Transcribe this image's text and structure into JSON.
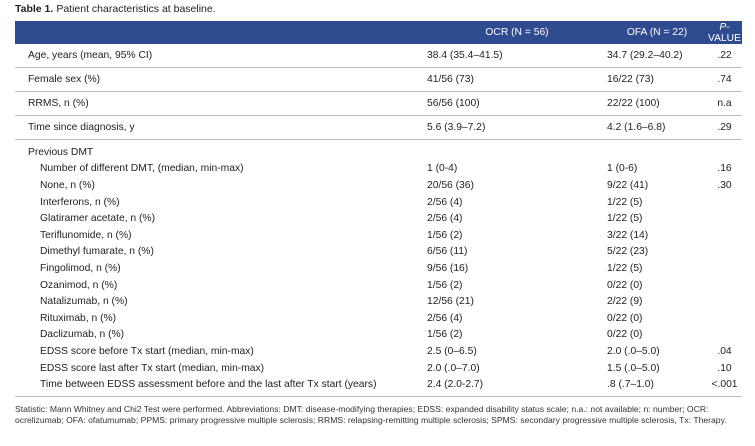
{
  "caption": {
    "label": "Table 1.",
    "text": "Patient characteristics at baseline."
  },
  "table": {
    "header": [
      "OCR (N = 56)",
      "OFA (N = 22)",
      {
        "italic": "P",
        "rest": "-VALUE"
      }
    ],
    "rows": [
      [
        "Age, years (mean, 95% CI)",
        "38.4 (35.4–41.5)",
        "34.7 (29.2–40.2)",
        ".22"
      ],
      [
        "Female sex (%)",
        "41/56 (73)",
        "16/22 (73)",
        ".74"
      ],
      [
        "RRMS, n (%)",
        "56/56 (100)",
        "22/22 (100)",
        "n.a"
      ],
      [
        "Time since diagnosis, y",
        "5.6 (3.9–7.2)",
        "4.2 (1.6–6.8)",
        ".29"
      ]
    ],
    "group": {
      "title": "Previous DMT",
      "rows": [
        [
          "Number of different DMT, (median, min-max)",
          "1 (0-4)",
          "1 (0-6)",
          ".16"
        ],
        [
          "None, n (%)",
          "20/56 (36)",
          "9/22 (41)",
          ".30"
        ],
        [
          "Interferons, n (%)",
          "2/56 (4)",
          "1/22 (5)"
        ],
        [
          "Glatiramer acetate, n (%)",
          "2/56 (4)",
          "1/22 (5)"
        ],
        [
          "Teriflunomide, n (%)",
          "1/56 (2)",
          "3/22 (14)"
        ],
        [
          "Dimethyl fumarate, n (%)",
          "6/56 (11)",
          "5/22 (23)"
        ],
        [
          "Fingolimod, n (%)",
          "9/56 (16)",
          "1/22 (5)"
        ],
        [
          "Ozanimod, n (%)",
          "1/56 (2)",
          "0/22 (0)"
        ],
        [
          "Natalizumab, n (%)",
          "12/56 (21)",
          "2/22 (9)"
        ],
        [
          "Rituximab, n (%)",
          "2/56 (4)",
          "0/22 (0)"
        ],
        [
          "Daclizumab, n (%)",
          "1/56 (2)",
          "0/22 (0)"
        ],
        [
          "EDSS score before Tx start (median, min-max)",
          "2.5 (0–6.5)",
          "2.0 (.0–5.0)",
          ".04"
        ],
        [
          "EDSS score last after Tx start (median, min-max)",
          "2.0 (.0–7.0)",
          "1.5 (.0–5.0)",
          ".10"
        ],
        [
          "Time between EDSS assessment before and the last after Tx start (years)",
          "2.4 (2.0-2.7)",
          ".8 (.7–1.0)",
          "<.001"
        ]
      ]
    }
  },
  "footnote": "Statistic: Mann Whitney and Chi2 Test were performed. Abbreviations: DMT: disease-modifying therapies; EDSS: expanded disability status scale; n.a.: not available; n: number; OCR: ocrelizumab; OFA: ofatumumab; PPMS: primary progressive multiple sclerosis; RRMS: relapsing-remitting multiple sclerosis; SPMS: secondary progressive multiple sclerosis, Tx: Therapy."
}
